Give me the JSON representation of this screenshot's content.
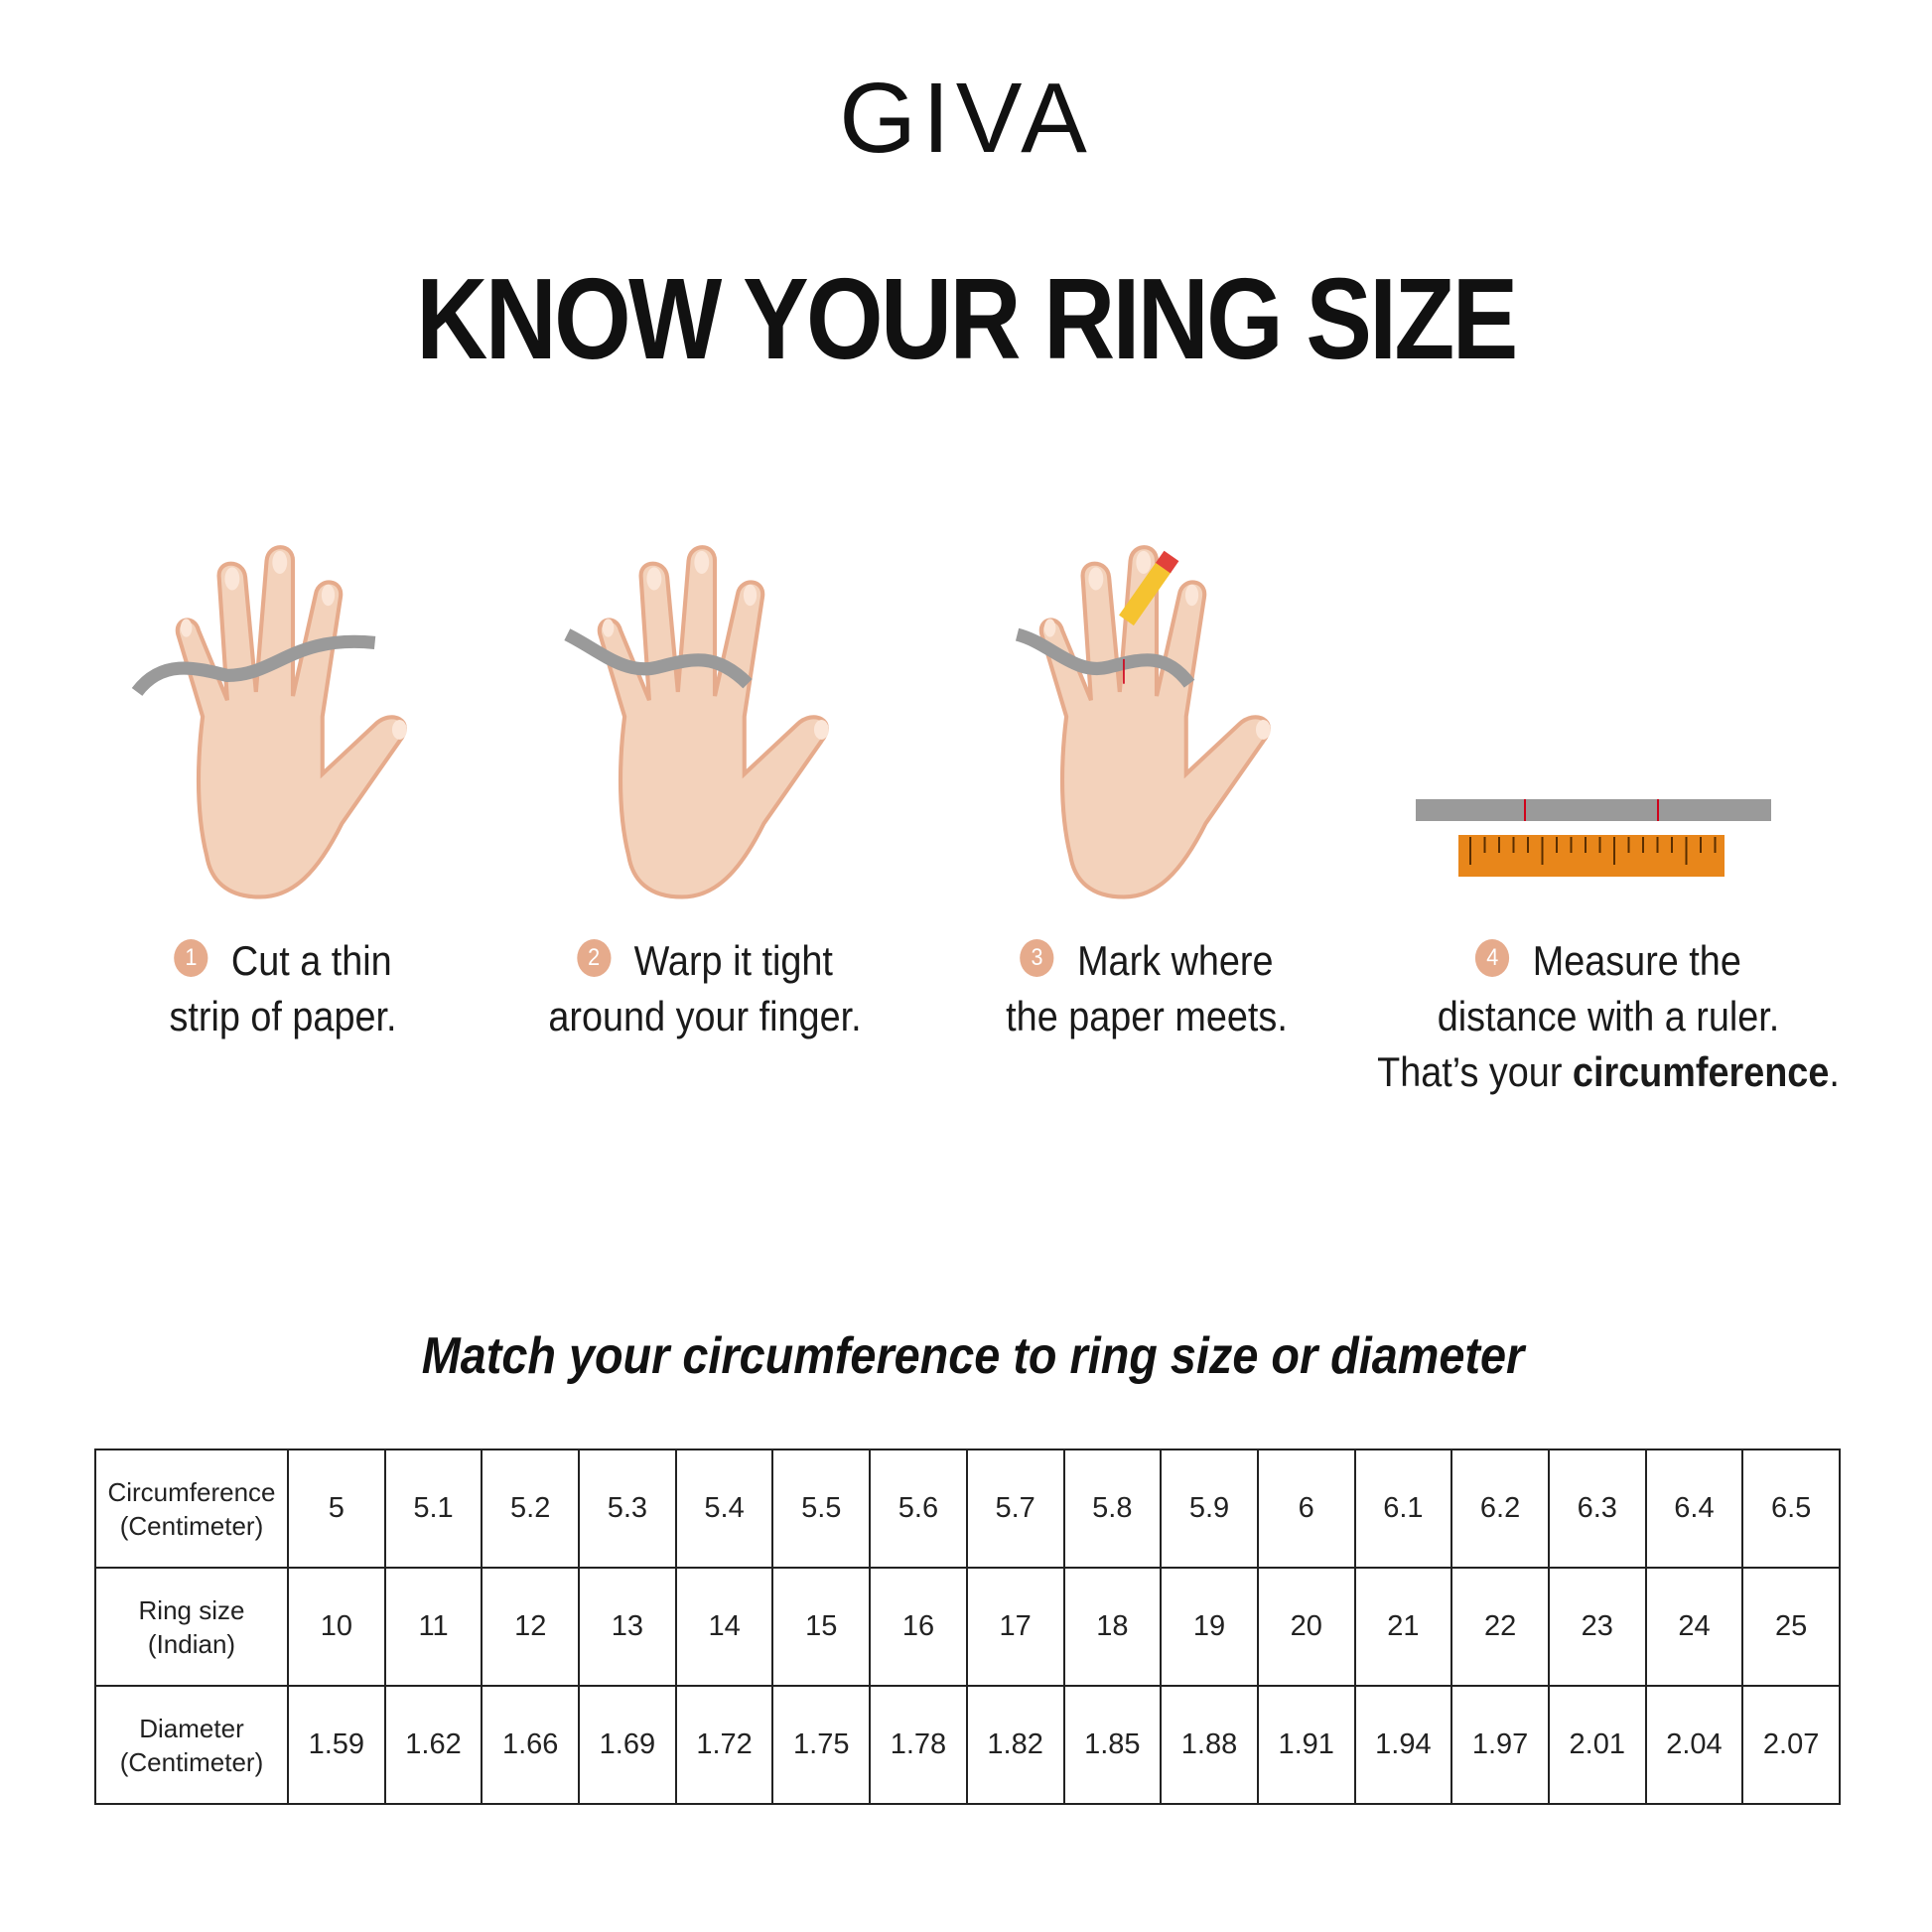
{
  "brand": {
    "logo": "GIVA"
  },
  "title": "KNOW YOUR RING SIZE",
  "steps": [
    {
      "number": "1",
      "line1": "Cut a thin",
      "line2": "strip of paper."
    },
    {
      "number": "2",
      "line1": "Warp it tight",
      "line2": "around your finger."
    },
    {
      "number": "3",
      "line1": "Mark where",
      "line2": "the paper meets."
    },
    {
      "number": "4",
      "line1": "Measure the",
      "line2": "distance with a ruler.",
      "line3_prefix": "That’s your ",
      "line3_bold": "circumference",
      "line3_suffix": "."
    }
  ],
  "colors": {
    "skin": "#f3d2bb",
    "skin_shadow": "#e6ab8c",
    "paper": "#9a9a9a",
    "ruler": "#e8861a",
    "pencil": "#f5c330",
    "eraser": "#e2413b"
  },
  "subtitle": "Match your circumference to ring size or diameter",
  "table": {
    "rows": [
      {
        "label1": "Circumference",
        "label2": "(Centimeter)",
        "values": [
          "5",
          "5.1",
          "5.2",
          "5.3",
          "5.4",
          "5.5",
          "5.6",
          "5.7",
          "5.8",
          "5.9",
          "6",
          "6.1",
          "6.2",
          "6.3",
          "6.4",
          "6.5"
        ]
      },
      {
        "label1": "Ring size",
        "label2": "(Indian)",
        "values": [
          "10",
          "11",
          "12",
          "13",
          "14",
          "15",
          "16",
          "17",
          "18",
          "19",
          "20",
          "21",
          "22",
          "23",
          "24",
          "25"
        ]
      },
      {
        "label1": "Diameter",
        "label2": "(Centimeter)",
        "values": [
          "1.59",
          "1.62",
          "1.66",
          "1.69",
          "1.72",
          "1.75",
          "1.78",
          "1.82",
          "1.85",
          "1.88",
          "1.91",
          "1.94",
          "1.97",
          "2.01",
          "2.04",
          "2.07"
        ]
      }
    ]
  }
}
